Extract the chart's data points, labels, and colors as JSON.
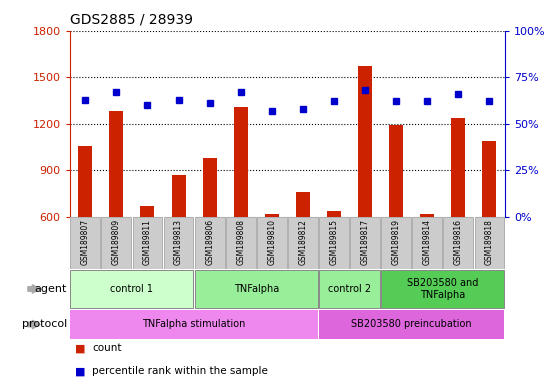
{
  "title": "GDS2885 / 28939",
  "samples": [
    "GSM189807",
    "GSM189809",
    "GSM189811",
    "GSM189813",
    "GSM189806",
    "GSM189808",
    "GSM189810",
    "GSM189812",
    "GSM189815",
    "GSM189817",
    "GSM189819",
    "GSM189814",
    "GSM189816",
    "GSM189818"
  ],
  "counts": [
    1060,
    1280,
    670,
    870,
    980,
    1310,
    620,
    760,
    640,
    1570,
    1190,
    620,
    1240,
    1090
  ],
  "percentile_ranks": [
    63,
    67,
    60,
    63,
    61,
    67,
    57,
    58,
    62,
    68,
    62,
    62,
    66,
    62
  ],
  "ylim_left": [
    600,
    1800
  ],
  "ylim_right": [
    0,
    100
  ],
  "yticks_left": [
    600,
    900,
    1200,
    1500,
    1800
  ],
  "yticks_right": [
    0,
    25,
    50,
    75,
    100
  ],
  "bar_color": "#cc2200",
  "square_color": "#0000cc",
  "agent_groups": [
    {
      "label": "control 1",
      "start": 0,
      "end": 3,
      "color": "#ccffcc"
    },
    {
      "label": "TNFalpha",
      "start": 4,
      "end": 7,
      "color": "#99ee99"
    },
    {
      "label": "control 2",
      "start": 8,
      "end": 9,
      "color": "#99ee99"
    },
    {
      "label": "SB203580 and\nTNFalpha",
      "start": 10,
      "end": 13,
      "color": "#55cc55"
    }
  ],
  "protocol_groups": [
    {
      "label": "TNFalpha stimulation",
      "start": 0,
      "end": 7,
      "color": "#ee88ee"
    },
    {
      "label": "SB203580 preincubation",
      "start": 8,
      "end": 13,
      "color": "#dd66dd"
    }
  ],
  "agent_label": "agent",
  "protocol_label": "protocol",
  "legend_count_color": "#cc2200",
  "legend_pct_color": "#0000cc",
  "background_color": "#ffffff",
  "sample_box_color": "#cccccc",
  "sample_box_edge_color": "#999999"
}
